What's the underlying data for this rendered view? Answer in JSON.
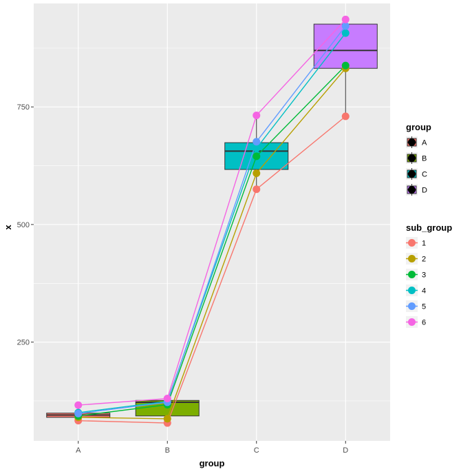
{
  "chart_data": {
    "type": "boxplot-with-lines",
    "xlabel": "group",
    "ylabel": "x",
    "categories": [
      "A",
      "B",
      "C",
      "D"
    ],
    "ylim": [
      40,
      970
    ],
    "yticks": [
      250,
      500,
      750
    ],
    "grid": true,
    "boxes": [
      {
        "group": "A",
        "min": 83,
        "q1": 90,
        "median": 95,
        "q3": 99,
        "max": 116,
        "color": "#F8766D"
      },
      {
        "group": "B",
        "min": 78,
        "q1": 93,
        "median": 122,
        "q3": 126,
        "max": 130,
        "color": "#7CAE00"
      },
      {
        "group": "C",
        "min": 575,
        "q1": 617,
        "median": 656,
        "q3": 674,
        "max": 732,
        "color": "#00BFC4"
      },
      {
        "group": "D",
        "min": 730,
        "q1": 832,
        "median": 870,
        "q3": 926,
        "max": 936,
        "color": "#C77CFF"
      }
    ],
    "series": [
      {
        "name": "1",
        "color": "#F8766D",
        "values": [
          83,
          78,
          575,
          730
        ]
      },
      {
        "name": "2",
        "color": "#B79F00",
        "values": [
          90,
          87,
          609,
          832
        ]
      },
      {
        "name": "3",
        "color": "#00BA38",
        "values": [
          93,
          117,
          645,
          838
        ]
      },
      {
        "name": "4",
        "color": "#00BFC4",
        "values": [
          100,
          124,
          662,
          907
        ]
      },
      {
        "name": "5",
        "color": "#619CFF",
        "values": [
          98,
          122,
          676,
          922
        ]
      },
      {
        "name": "6",
        "color": "#F564E3",
        "values": [
          116,
          130,
          732,
          936
        ]
      }
    ],
    "legend_group": {
      "title": "group",
      "position": "right",
      "items": [
        {
          "label": "A",
          "color": "#F8766D"
        },
        {
          "label": "B",
          "color": "#7CAE00"
        },
        {
          "label": "C",
          "color": "#00BFC4"
        },
        {
          "label": "D",
          "color": "#C77CFF"
        }
      ]
    },
    "legend_sub_group": {
      "title": "sub_group",
      "position": "right",
      "items": [
        {
          "label": "1",
          "color": "#F8766D"
        },
        {
          "label": "2",
          "color": "#B79F00"
        },
        {
          "label": "3",
          "color": "#00BA38"
        },
        {
          "label": "4",
          "color": "#00BFC4"
        },
        {
          "label": "5",
          "color": "#619CFF"
        },
        {
          "label": "6",
          "color": "#F564E3"
        }
      ]
    },
    "panel_background": "#EBEBEB",
    "grid_color": "#FFFFFF"
  }
}
